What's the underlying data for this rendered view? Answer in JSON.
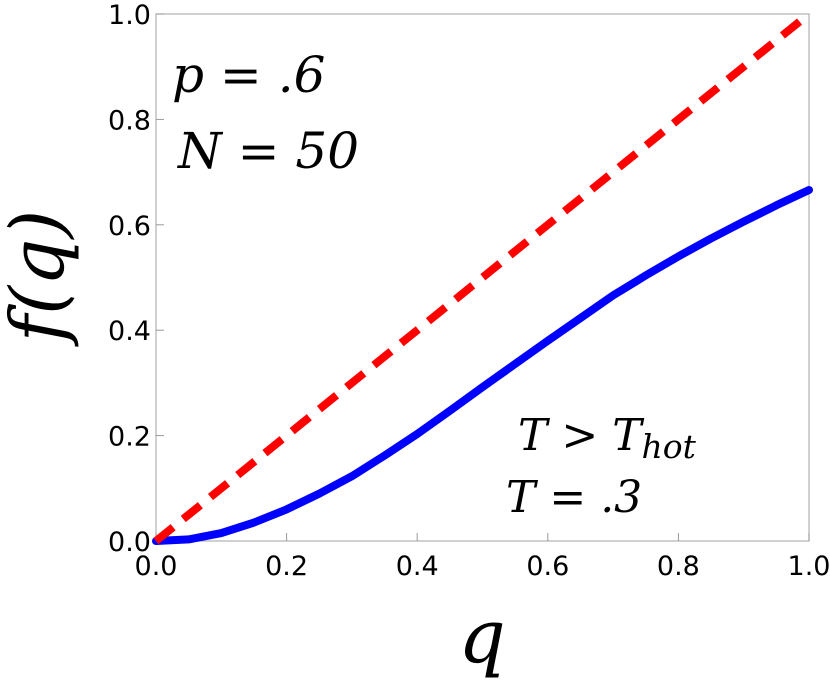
{
  "chart_data": {
    "type": "line",
    "xlabel": "q",
    "ylabel": "f(q)",
    "xlim": [
      0,
      1
    ],
    "ylim": [
      0,
      1
    ],
    "x_ticks": [
      "0.0",
      "0.2",
      "0.4",
      "0.6",
      "0.8",
      "1.0"
    ],
    "y_ticks": [
      "0.0",
      "0.2",
      "0.4",
      "0.6",
      "0.8",
      "1.0"
    ],
    "grid": false,
    "series": [
      {
        "style": "solid",
        "color": "#0000ff",
        "x": [
          0.0,
          0.05,
          0.1,
          0.15,
          0.2,
          0.25,
          0.3,
          0.35,
          0.4,
          0.45,
          0.5,
          0.55,
          0.6,
          0.65,
          0.7,
          0.75,
          0.8,
          0.85,
          0.9,
          0.95,
          1.0
        ],
        "y": [
          0.0,
          0.003,
          0.015,
          0.035,
          0.06,
          0.09,
          0.123,
          0.162,
          0.203,
          0.247,
          0.292,
          0.336,
          0.38,
          0.423,
          0.466,
          0.504,
          0.54,
          0.574,
          0.606,
          0.637,
          0.666
        ]
      },
      {
        "style": "dashed",
        "color": "#ff0000",
        "x": [
          0.0,
          1.0
        ],
        "y": [
          0.0,
          1.0
        ]
      }
    ],
    "annotations": {
      "p_label": "p = .6",
      "n_label": "N = 50",
      "t_condition": "T > T",
      "t_condition_sub": "hot",
      "t_value": "T = .3"
    }
  }
}
